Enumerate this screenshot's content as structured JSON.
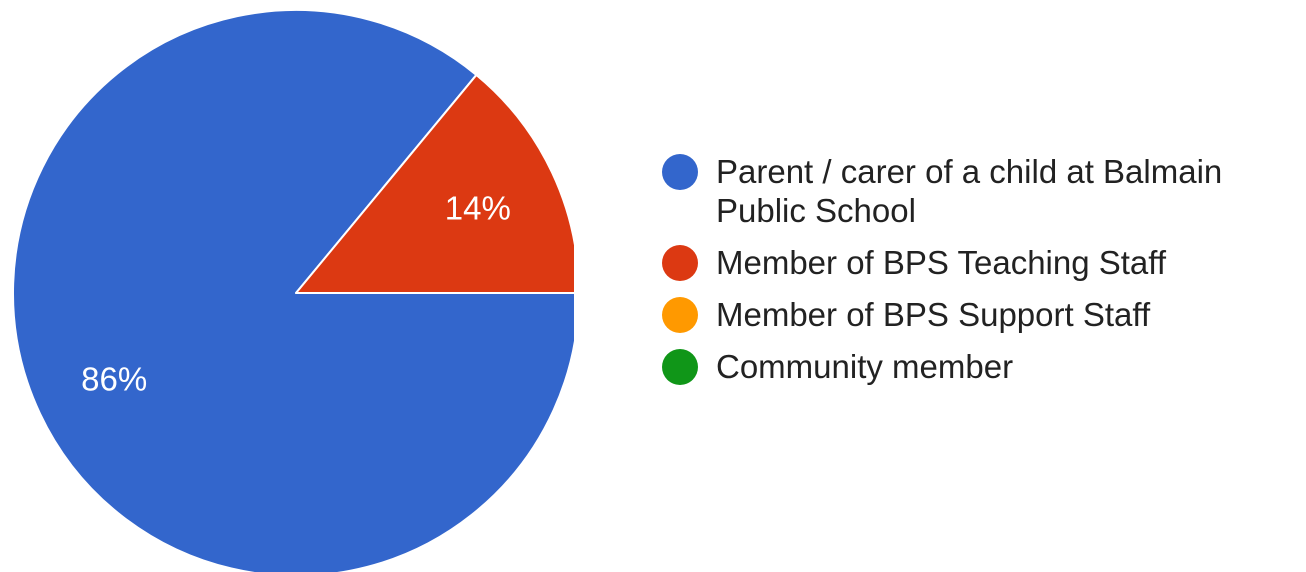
{
  "chart_data": {
    "type": "pie",
    "title": "",
    "slices": [
      {
        "label": "Parent / carer of a child at Balmain Public School",
        "value": 86,
        "display": "86%",
        "color": "#3366cc"
      },
      {
        "label": "Member of BPS Teaching Staff",
        "value": 14,
        "display": "14%",
        "color": "#dc3912"
      },
      {
        "label": "Member of BPS Support Staff",
        "value": 0,
        "display": "",
        "color": "#ff9900"
      },
      {
        "label": "Community member",
        "value": 0,
        "display": "",
        "color": "#109618"
      }
    ],
    "legend": "right"
  }
}
